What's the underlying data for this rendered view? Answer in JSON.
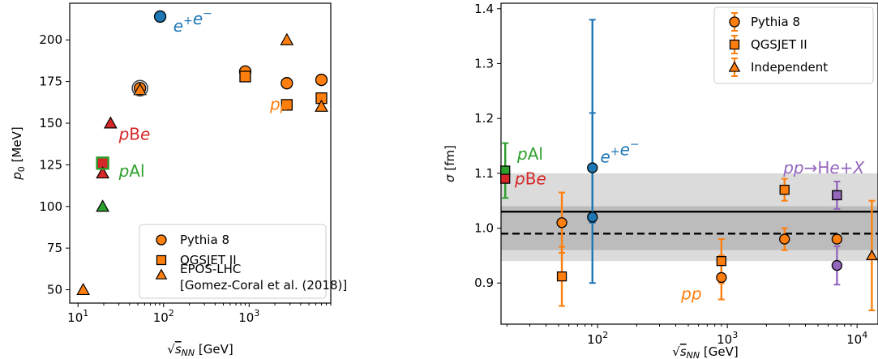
{
  "chart_data": [
    {
      "type": "scatter",
      "xlabel": "√s_NN [GeV]",
      "ylabel": "p_0 [MeV]",
      "xscale": "log",
      "xlim": [
        8,
        9000
      ],
      "ylim": [
        42,
        222
      ],
      "xticks": [
        {
          "v": 10,
          "base": "10",
          "exp": "1"
        },
        {
          "v": 100,
          "base": "10",
          "exp": "2"
        },
        {
          "v": 1000,
          "base": "10",
          "exp": "3"
        }
      ],
      "yticks": [
        50,
        75,
        100,
        125,
        150,
        175,
        200
      ],
      "legend_position": "lower right",
      "legend": [
        {
          "label": "Pythia 8",
          "marker": "circle"
        },
        {
          "label": "QGSJET II",
          "marker": "square"
        },
        {
          "label": "EPOS-LHC",
          "label2": "[Gomez-Coral et al. (2018)]",
          "marker": "triangle"
        }
      ],
      "annotations": [
        {
          "text": "e⁺e⁻",
          "x": 130,
          "y": 205,
          "color": "#1f77b4"
        },
        {
          "text": "pBe",
          "x": 30,
          "y": 140,
          "color": "#d62728"
        },
        {
          "text": "pAl",
          "x": 30,
          "y": 118,
          "color": "#2ca02c"
        },
        {
          "text": "pp",
          "x": 1750,
          "y": 158,
          "color": "#ff7f0e"
        }
      ],
      "series": [
        {
          "group": "e+e-",
          "color": "#1f77b4",
          "points": [
            {
              "x": 91.2,
              "y": 214,
              "marker": "circle"
            }
          ]
        },
        {
          "group": "pBe",
          "color": "#d62728",
          "points": [
            {
              "x": 19.4,
              "y": 126,
              "marker": "circle"
            },
            {
              "x": 19.4,
              "y": 126,
              "marker": "square"
            },
            {
              "x": 19.4,
              "y": 120,
              "marker": "triangle"
            },
            {
              "x": 24,
              "y": 150,
              "marker": "triangle"
            }
          ]
        },
        {
          "group": "pAl",
          "color": "#2ca02c",
          "points": [
            {
              "x": 19.4,
              "y": 126,
              "marker": "square_outline"
            },
            {
              "x": 19.4,
              "y": 100,
              "marker": "triangle"
            }
          ]
        },
        {
          "group": "pp",
          "color": "#ff7f0e",
          "points": [
            {
              "x": 11.5,
              "y": 50,
              "marker": "triangle"
            },
            {
              "x": 53,
              "y": 171,
              "marker": "circle"
            },
            {
              "x": 53,
              "y": 170,
              "marker": "triangle"
            },
            {
              "x": 900,
              "y": 181,
              "marker": "circle"
            },
            {
              "x": 900,
              "y": 178,
              "marker": "square"
            },
            {
              "x": 2760,
              "y": 174,
              "marker": "circle"
            },
            {
              "x": 2760,
              "y": 161,
              "marker": "square"
            },
            {
              "x": 2760,
              "y": 200,
              "marker": "triangle"
            },
            {
              "x": 7000,
              "y": 176,
              "marker": "circle"
            },
            {
              "x": 7000,
              "y": 165,
              "marker": "square"
            },
            {
              "x": 7000,
              "y": 160,
              "marker": "triangle"
            }
          ]
        },
        {
          "group": "ring",
          "color": "#444444",
          "points": [
            {
              "x": 53,
              "y": 171,
              "marker": "ring"
            }
          ]
        }
      ]
    },
    {
      "type": "scatter",
      "xlabel": "√s_NN [GeV]",
      "ylabel": "σ [fm]",
      "xscale": "log",
      "xlim": [
        18,
        14500
      ],
      "ylim": [
        0.825,
        1.41
      ],
      "xticks": [
        {
          "v": 100,
          "base": "10",
          "exp": "2"
        },
        {
          "v": 1000,
          "base": "10",
          "exp": "3"
        },
        {
          "v": 10000,
          "base": "10",
          "exp": "4"
        }
      ],
      "yticks": [
        0.9,
        1.0,
        1.1,
        1.2,
        1.3,
        1.4
      ],
      "legend_position": "upper right",
      "legend": [
        {
          "label": "Pythia 8",
          "marker": "circle"
        },
        {
          "label": "QGSJET II",
          "marker": "square"
        },
        {
          "label": "Independent",
          "marker": "triangle"
        }
      ],
      "bands": [
        {
          "center": 1.03,
          "lo": 0.96,
          "hi": 1.1,
          "line": "solid"
        },
        {
          "center": 0.99,
          "lo": 0.94,
          "hi": 1.04,
          "line": "dashed"
        }
      ],
      "annotations": [
        {
          "text": "pAl",
          "x": 24,
          "y": 1.125,
          "color": "#2ca02c"
        },
        {
          "text": "pBe",
          "x": 23,
          "y": 1.08,
          "color": "#d62728"
        },
        {
          "text": "e⁺e⁻",
          "x": 105,
          "y": 1.12,
          "color": "#1f77b4"
        },
        {
          "text": "pp→He+X",
          "x": 2700,
          "y": 1.1,
          "color": "#9467bd"
        },
        {
          "text": "pp",
          "x": 440,
          "y": 0.87,
          "color": "#ff7f0e"
        }
      ],
      "series": [
        {
          "group": "pAl",
          "color": "#2ca02c",
          "points": [
            {
              "x": 19.4,
              "y": 1.105,
              "marker": "square",
              "err": [
                1.055,
                1.155
              ]
            }
          ]
        },
        {
          "group": "pBe",
          "color": "#d62728",
          "points": [
            {
              "x": 19.4,
              "y": 1.09,
              "marker": "square"
            }
          ]
        },
        {
          "group": "e+e-",
          "color": "#1f77b4",
          "points": [
            {
              "x": 91.2,
              "y": 1.11,
              "marker": "circle",
              "err": [
                1.01,
                1.21
              ]
            },
            {
              "x": 91.2,
              "y": 1.02,
              "marker": "circle",
              "err": [
                0.9,
                1.38
              ]
            }
          ]
        },
        {
          "group": "pp",
          "color": "#ff7f0e",
          "points": [
            {
              "x": 53,
              "y": 1.01,
              "marker": "circle",
              "err": [
                0.955,
                1.065
              ]
            },
            {
              "x": 53,
              "y": 0.912,
              "marker": "square",
              "err": [
                0.858,
                0.966
              ]
            },
            {
              "x": 900,
              "y": 0.91,
              "marker": "circle",
              "err": [
                0.87,
                0.95
              ]
            },
            {
              "x": 900,
              "y": 0.94,
              "marker": "square",
              "err": [
                0.9,
                0.98
              ]
            },
            {
              "x": 2760,
              "y": 0.98,
              "marker": "circle",
              "err": [
                0.96,
                1.0
              ]
            },
            {
              "x": 2760,
              "y": 1.07,
              "marker": "square",
              "err": [
                1.05,
                1.09
              ]
            },
            {
              "x": 7000,
              "y": 0.98,
              "marker": "circle"
            },
            {
              "x": 7000,
              "y": 1.06,
              "marker": "square"
            },
            {
              "x": 13000,
              "y": 0.95,
              "marker": "triangle",
              "err": [
                0.85,
                1.05
              ]
            }
          ]
        },
        {
          "group": "pp-He",
          "color": "#9467bd",
          "points": [
            {
              "x": 7000,
              "y": 0.932,
              "marker": "circle",
              "err": [
                0.897,
                0.967
              ]
            },
            {
              "x": 7000,
              "y": 1.06,
              "marker": "square",
              "err": [
                1.035,
                1.085
              ]
            }
          ]
        }
      ]
    }
  ]
}
